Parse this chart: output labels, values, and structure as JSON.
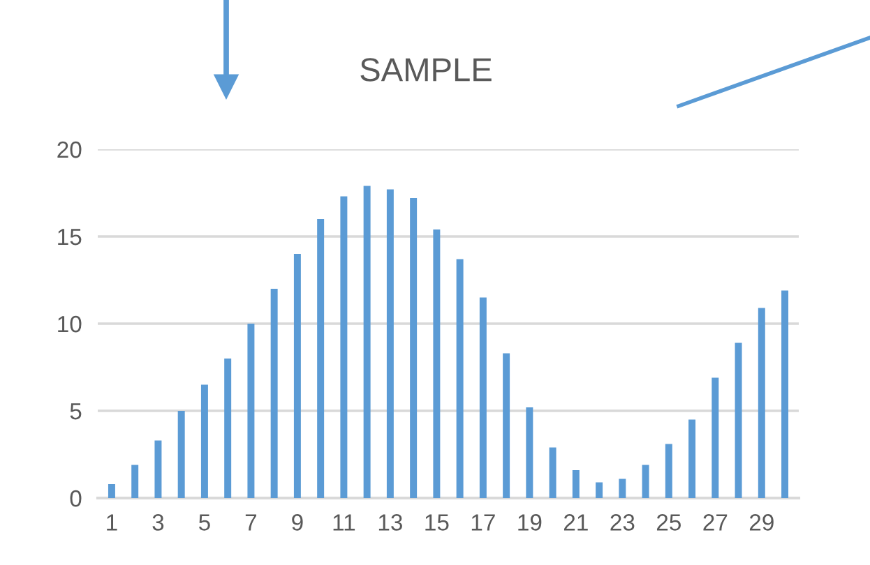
{
  "chart_data": {
    "type": "bar",
    "title": "SAMPLE",
    "categories": [
      "1",
      null,
      "3",
      null,
      "5",
      null,
      "7",
      null,
      "9",
      null,
      "11",
      null,
      "13",
      null,
      "15",
      null,
      "17",
      null,
      "19",
      null,
      "21",
      null,
      "23",
      null,
      "25",
      null,
      "27",
      null,
      "29",
      null
    ],
    "values": [
      0.8,
      1.9,
      3.3,
      5.0,
      6.5,
      8.0,
      10,
      12,
      14,
      16,
      17.3,
      17.9,
      17.7,
      17.2,
      15.4,
      13.7,
      11.5,
      8.3,
      5.2,
      2.9,
      1.6,
      0.9,
      1.1,
      1.9,
      3.1,
      4.5,
      6.9,
      8.9,
      10.9,
      11.9
    ],
    "color": "#5b9bd5",
    "ylim": [
      0,
      20
    ],
    "yticks": [
      0,
      5,
      10,
      15,
      20
    ],
    "grid": "y"
  }
}
